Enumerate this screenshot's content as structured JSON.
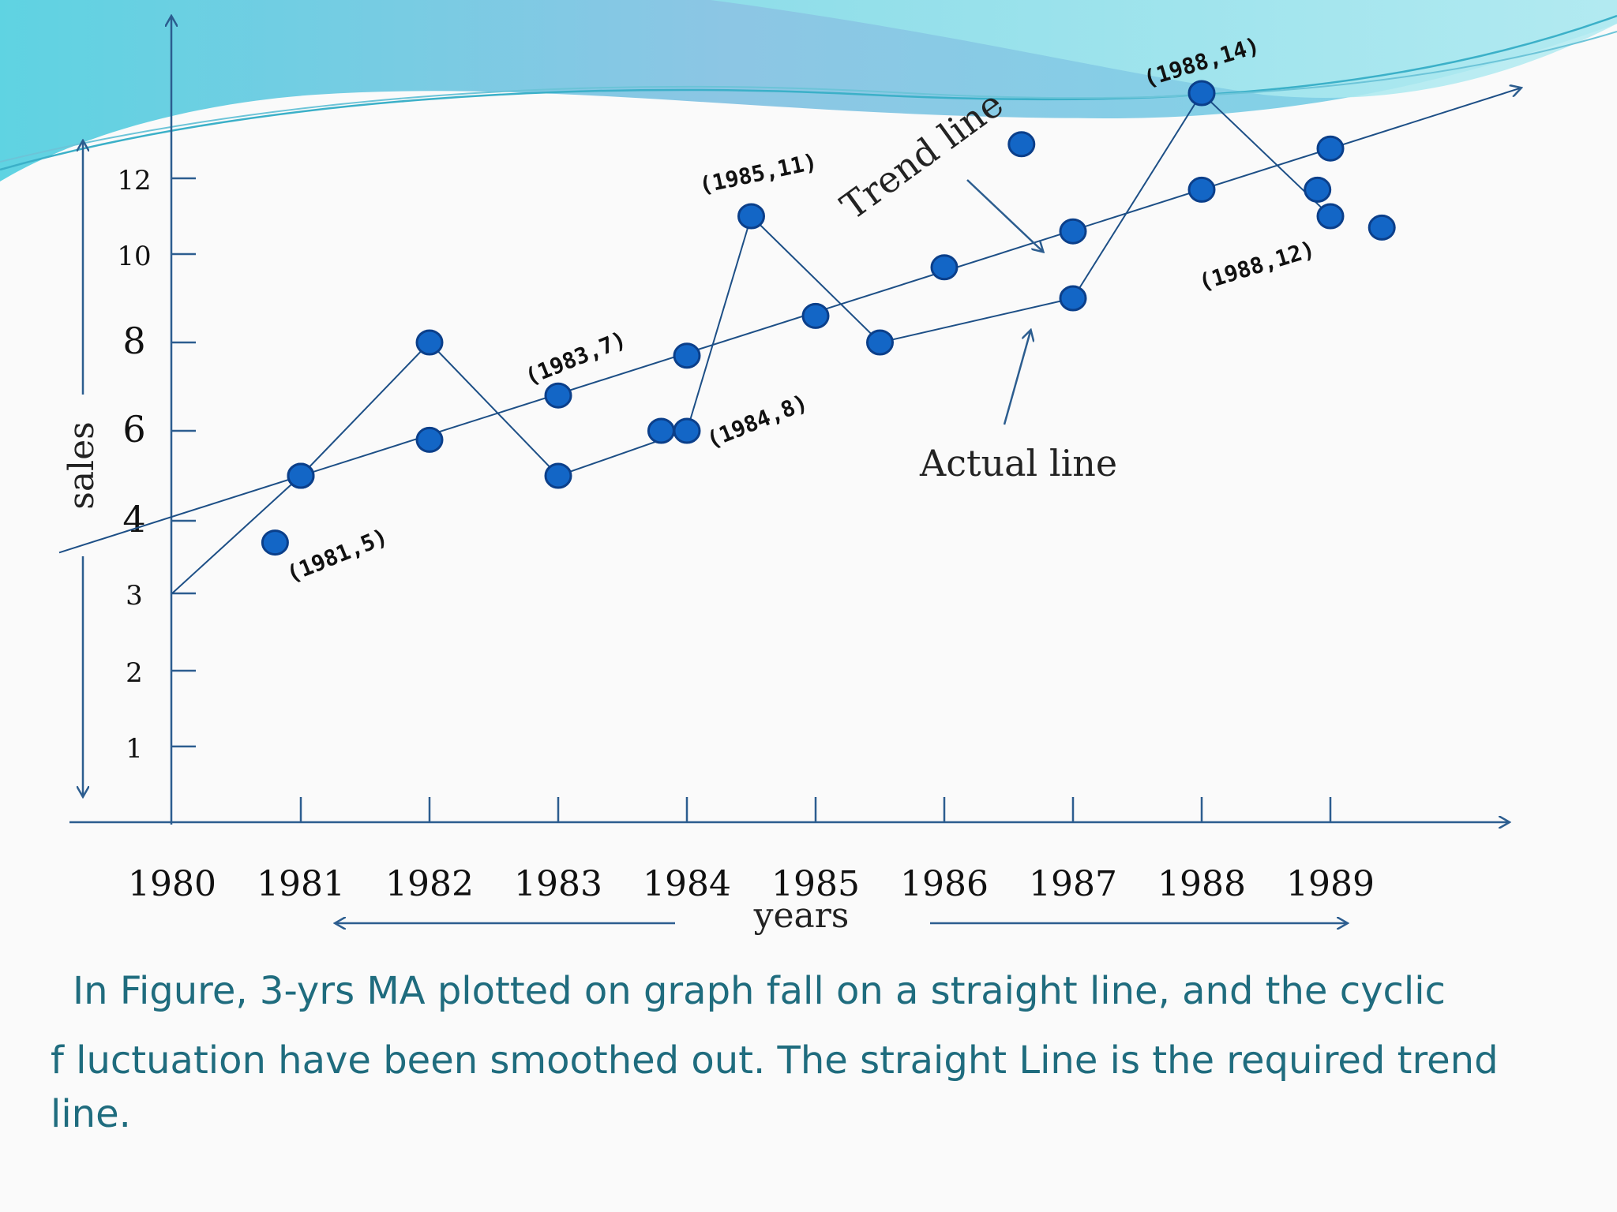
{
  "chart_data": {
    "type": "line",
    "ylabel": "sales",
    "xlabel": "years",
    "x_ticks": [
      "1980",
      "1981",
      "1982",
      "1983",
      "1984",
      "1985",
      "1986",
      "1987",
      "1988",
      "1989"
    ],
    "y_ticks": [
      "1",
      "2",
      "3",
      "4",
      "6",
      "8",
      "10",
      "12"
    ],
    "series": [
      {
        "name": "Actual line",
        "values": [
          [
            1980,
            3
          ],
          [
            1981,
            5
          ],
          [
            1982,
            8
          ],
          [
            1983,
            5
          ],
          [
            1984,
            6
          ],
          [
            1984.5,
            11
          ],
          [
            1985.5,
            8
          ],
          [
            1987,
            9
          ],
          [
            1988,
            14
          ],
          [
            1989,
            11
          ]
        ]
      },
      {
        "name": "Trend line",
        "values": [
          [
            1981,
            5
          ],
          [
            1982,
            5.8
          ],
          [
            1983,
            6.8
          ],
          [
            1984,
            7.7
          ],
          [
            1985,
            8.6
          ],
          [
            1986,
            9.7
          ],
          [
            1987,
            10.6
          ],
          [
            1988,
            11.7
          ],
          [
            1989,
            12.7
          ]
        ]
      }
    ],
    "extra_points": [
      [
        1980.8,
        3.7
      ],
      [
        1983.8,
        6
      ],
      [
        1986.6,
        12.8
      ],
      [
        1988.9,
        11.7
      ],
      [
        1989.4,
        10.7
      ]
    ],
    "annotations": [
      {
        "text": "(1981,5)"
      },
      {
        "text": "(1983,7)"
      },
      {
        "text": "(1984,8)"
      },
      {
        "text": "(1985,11)"
      },
      {
        "text": "(1988,14)"
      },
      {
        "text": "(1988,12)"
      }
    ],
    "line_labels": {
      "trend": "Trend line",
      "actual": "Actual line"
    },
    "colors": {
      "axis": "#2c5d8f",
      "point_fill": "#1366c6",
      "point_stroke": "#0b3f8a",
      "line": "#1d4f86"
    }
  },
  "caption": {
    "line1": "In Figure,  3-yrs MA  plotted on graph fall on a straight line, and the cyclic",
    "line2": "f luctuation have been smoothed out. The  straight  Line is the required trend",
    "line3": "line."
  }
}
